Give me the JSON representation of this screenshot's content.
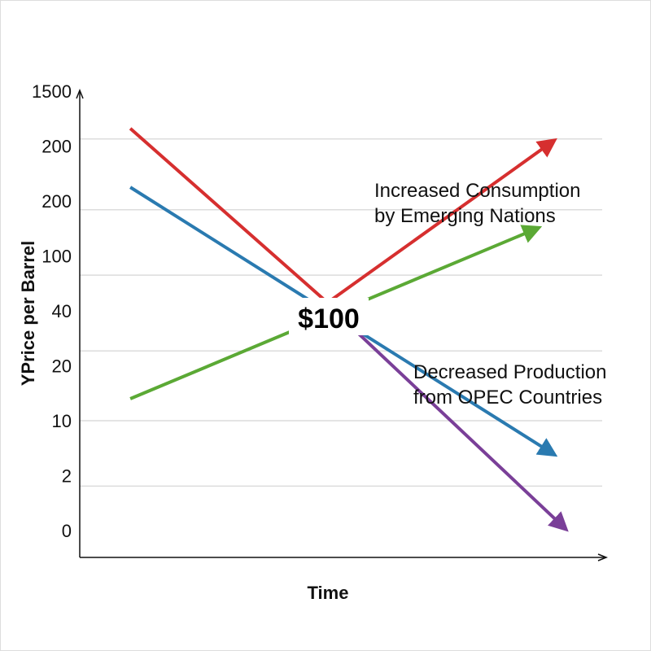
{
  "chart_data": {
    "type": "line",
    "title": "",
    "xlabel": "Time",
    "ylabel": "YPrice per Barrel",
    "xlim": [
      0,
      10
    ],
    "ylim": [
      -0.5,
      8.5
    ],
    "y_tick_labels": [
      "0",
      "2",
      "10",
      "20",
      "40",
      "100",
      "200",
      "200",
      "1500"
    ],
    "gridlines": [
      0.81,
      2.0,
      3.27,
      4.65,
      5.84,
      7.13
    ],
    "center_label": "$100",
    "annotations": [
      {
        "lines": [
          "Increased Consumption",
          "by Emerging Nations"
        ]
      },
      {
        "lines": [
          "Decreased Production",
          "from OPEC Countries"
        ]
      }
    ],
    "series": [
      {
        "name": "red",
        "color": "#d62f2f",
        "points": [
          [
            0.96,
            7.32
          ],
          [
            4.67,
            4.18
          ]
        ],
        "arrow": false
      },
      {
        "name": "red-arrow",
        "color": "#d62f2f",
        "points": [
          [
            4.75,
            4.18
          ],
          [
            8.92,
            7.04
          ]
        ],
        "arrow": true
      },
      {
        "name": "blue",
        "color": "#2a7ab0",
        "points": [
          [
            0.96,
            6.25
          ],
          [
            8.92,
            1.44
          ]
        ],
        "arrow": true
      },
      {
        "name": "green",
        "color": "#5ba935",
        "points": [
          [
            0.96,
            2.4
          ],
          [
            8.61,
            5.47
          ]
        ],
        "arrow": true
      },
      {
        "name": "purple",
        "color": "#7a3f98",
        "points": [
          [
            5.29,
            3.59
          ],
          [
            9.15,
            0.1
          ]
        ],
        "arrow": true
      }
    ]
  }
}
